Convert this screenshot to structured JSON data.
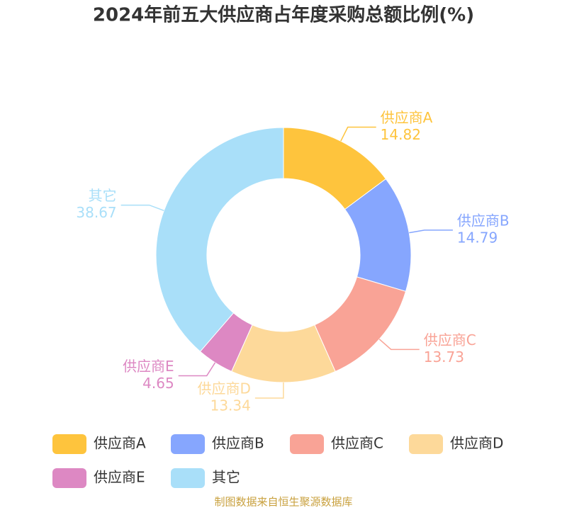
{
  "chart_data": {
    "type": "pie",
    "title": "2024年前五大供应商占年度采购总额比例(%)",
    "categories": [
      "供应商A",
      "供应商B",
      "供应商C",
      "供应商D",
      "供应商E",
      "其它"
    ],
    "values": [
      14.82,
      14.79,
      13.73,
      13.34,
      4.65,
      38.67
    ],
    "colors": [
      "#fec43d",
      "#86a6fe",
      "#f9a396",
      "#fdd99a",
      "#dd88c3",
      "#a9dff9"
    ],
    "donut": true
  },
  "source": "制图数据来自恒生聚源数据库"
}
